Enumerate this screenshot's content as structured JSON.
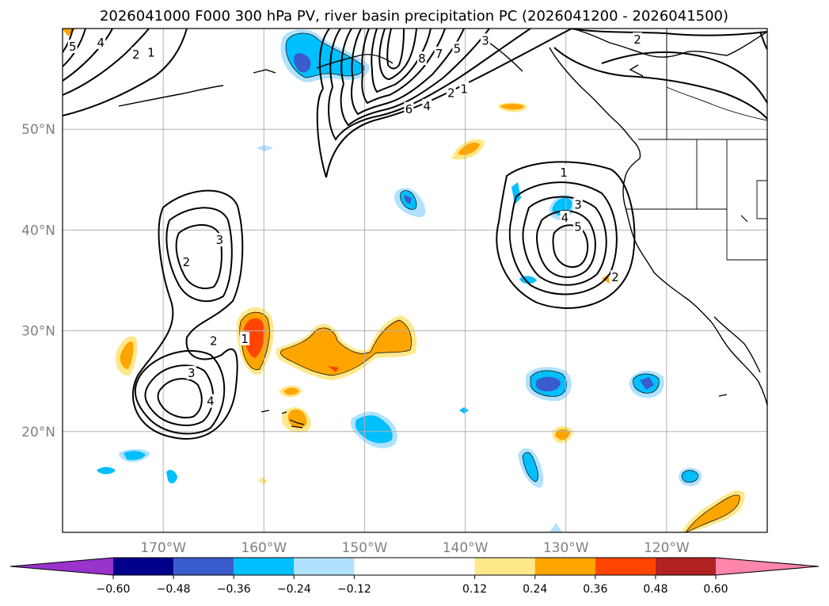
{
  "chart_data": {
    "type": "map-contour",
    "title": "2026041000 F000 300 hPa PV, river basin precipitation PC (2026041200 - 2026041500)",
    "extent": {
      "lon": [
        -180,
        -110
      ],
      "lat": [
        10,
        60
      ]
    },
    "x_ticks": [
      {
        "lon": -170,
        "label": "170°W"
      },
      {
        "lon": -160,
        "label": "160°W"
      },
      {
        "lon": -150,
        "label": "150°W"
      },
      {
        "lon": -140,
        "label": "140°W"
      },
      {
        "lon": -130,
        "label": "130°W"
      },
      {
        "lon": -120,
        "label": "120°W"
      }
    ],
    "y_ticks": [
      {
        "lat": 20,
        "label": "20°N"
      },
      {
        "lat": 30,
        "label": "30°N"
      },
      {
        "lat": 40,
        "label": "40°N"
      },
      {
        "lat": 50,
        "label": "50°N"
      }
    ],
    "grid": true,
    "colorbar": {
      "placement": "bottom",
      "extend": "both",
      "boundaries": [
        -0.72,
        -0.6,
        -0.48,
        -0.36,
        -0.24,
        -0.12,
        0.12,
        0.24,
        0.36,
        0.48,
        0.6,
        0.72
      ],
      "colors": [
        "#9933cc",
        "#00008b",
        "#3a5ccc",
        "#00bfff",
        "#b0e2ff",
        "#ffffff",
        "#ffe88a",
        "#ffa500",
        "#ff4500",
        "#b22222",
        "#ff85aa"
      ],
      "tick_labels": [
        "−0.60",
        "−0.48",
        "−0.36",
        "−0.24",
        "−0.12",
        "0.12",
        "0.24",
        "0.36",
        "0.48",
        "0.60"
      ],
      "tick_values": [
        -0.6,
        -0.48,
        -0.36,
        -0.24,
        -0.12,
        0.12,
        0.24,
        0.36,
        0.48,
        0.6
      ]
    },
    "pv_contour_labels": [
      {
        "text": "5",
        "lon": -179.0,
        "lat": 58.2
      },
      {
        "text": "4",
        "lon": -176.2,
        "lat": 58.6
      },
      {
        "text": "2",
        "lon": -172.7,
        "lat": 57.4
      },
      {
        "text": "1",
        "lon": -171.2,
        "lat": 57.6
      },
      {
        "text": "8",
        "lon": -144.3,
        "lat": 57.0
      },
      {
        "text": "7",
        "lon": -142.6,
        "lat": 57.5
      },
      {
        "text": "5",
        "lon": -140.8,
        "lat": 58.0
      },
      {
        "text": "3",
        "lon": -138.0,
        "lat": 58.8
      },
      {
        "text": "6",
        "lon": -145.6,
        "lat": 52.0
      },
      {
        "text": "4",
        "lon": -143.8,
        "lat": 52.3
      },
      {
        "text": "2",
        "lon": -141.4,
        "lat": 53.6
      },
      {
        "text": "1",
        "lon": -140.1,
        "lat": 54.0
      },
      {
        "text": "2",
        "lon": -122.9,
        "lat": 58.9
      },
      {
        "text": "1",
        "lon": -130.2,
        "lat": 45.7
      },
      {
        "text": "3",
        "lon": -128.8,
        "lat": 42.5
      },
      {
        "text": "4",
        "lon": -130.1,
        "lat": 41.2
      },
      {
        "text": "5",
        "lon": -128.8,
        "lat": 40.3
      },
      {
        "text": "2",
        "lon": -125.1,
        "lat": 35.3
      },
      {
        "text": "3",
        "lon": -164.4,
        "lat": 39.0
      },
      {
        "text": "2",
        "lon": -167.7,
        "lat": 36.8
      },
      {
        "text": "1",
        "lon": -161.9,
        "lat": 29.2
      },
      {
        "text": "2",
        "lon": -165.0,
        "lat": 29.0
      },
      {
        "text": "3",
        "lon": -167.2,
        "lat": 25.8
      },
      {
        "text": "4",
        "lon": -165.3,
        "lat": 23.0
      }
    ]
  }
}
